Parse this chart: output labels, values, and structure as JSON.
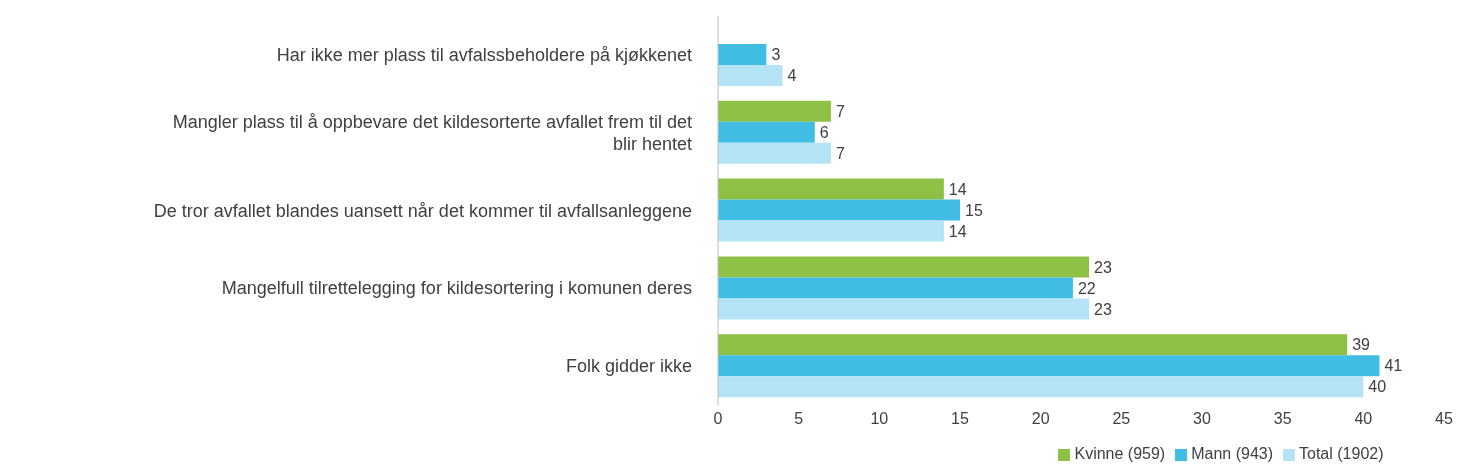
{
  "chart_data": {
    "type": "bar",
    "orientation": "horizontal",
    "categories": [
      "Har ikke mer plass til avfalssbeholdere på kjøkkenet",
      "Mangler plass til å oppbevare det kildesorterte avfallet frem til det blir hentet",
      "De tror avfallet blandes uansett når det kommer til avfallsanleggene",
      "Mangelfull tilrettelegging for kildesortering i komunen deres",
      "Folk gidder ikke"
    ],
    "series": [
      {
        "name": "Kvinne (959)",
        "color": "#8dc044",
        "values": [
          null,
          7,
          14,
          23,
          39
        ]
      },
      {
        "name": "Mann (943)",
        "color": "#41bde3",
        "values": [
          3,
          6,
          15,
          22,
          41
        ]
      },
      {
        "name": "Total (1902)",
        "color": "#b3e3f4",
        "values": [
          4,
          7,
          14,
          23,
          40
        ]
      }
    ],
    "xlim": [
      0,
      45
    ],
    "xticks": [
      0,
      5,
      10,
      15,
      20,
      25,
      30,
      35,
      40,
      45
    ],
    "data_labels": true,
    "grid": false,
    "legend": "bottom"
  }
}
